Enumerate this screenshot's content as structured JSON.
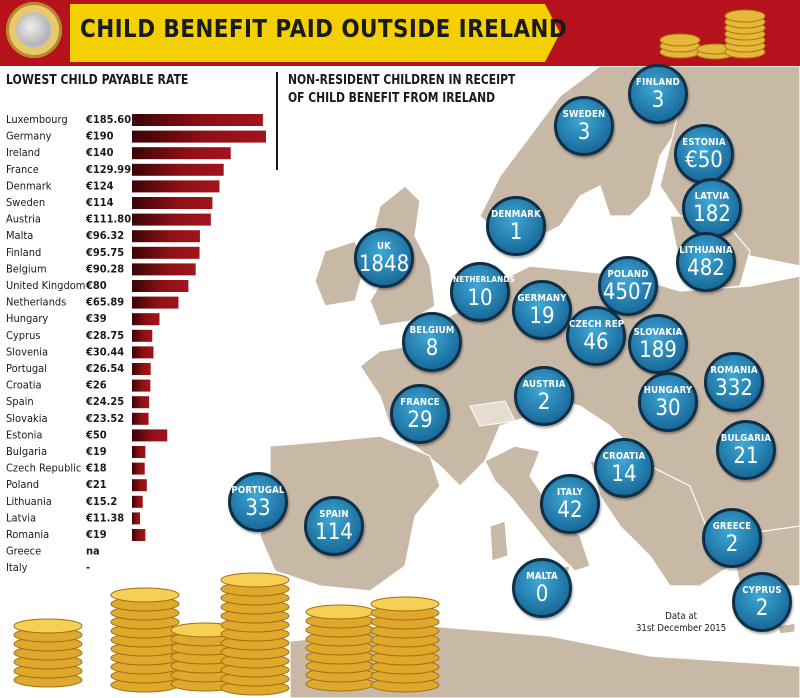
{
  "header": {
    "title": "CHILD BENEFIT PAID OUTSIDE IRELAND"
  },
  "bar_chart_heading": "LOWEST CHILD PAYABLE RATE",
  "map_heading": {
    "line1": "NON-RESIDENT CHILDREN IN RECEIPT",
    "line2": "OF CHILD BENEFIT FROM IRELAND"
  },
  "note": {
    "line1": "Data at",
    "line2": "31st December 2015"
  },
  "colors": {
    "header_red": "#b5121b",
    "bar_red": "#a3141c",
    "bubble_blue": "#1b6e9e",
    "bubble_border": "#0e2f47",
    "land": "#c8b8a6",
    "sea": "#ffffff"
  },
  "chart_data": [
    {
      "type": "bar",
      "orientation": "horizontal",
      "title": "LOWEST CHILD PAYABLE RATE",
      "categories": [
        "Luxembourg",
        "Germany",
        "Ireland",
        "France",
        "Denmark",
        "Sweden",
        "Austria",
        "Malta",
        "Finland",
        "Belgium",
        "United Kingdom",
        "Netherlands",
        "Hungary",
        "Cyprus",
        "Slovenia",
        "Portugal",
        "Croatia",
        "Spain",
        "Slovakia",
        "Estonia",
        "Bulgaria",
        "Czech Republic",
        "Poland",
        "Lithuania",
        "Latvia",
        "Romania",
        "Greece",
        "Italy"
      ],
      "labels": [
        "€185.60",
        "€190",
        "€140",
        "€129.99",
        "€124",
        "€114",
        "€111.80",
        "€96.32",
        "€95.75",
        "€90.28",
        "€80",
        "€65.89",
        "€39",
        "€28.75",
        "€30.44",
        "€26.54",
        "€26",
        "€24.25",
        "€23.52",
        "€50",
        "€19",
        "€18",
        "€21",
        "€15.2",
        "€11.38",
        "€19",
        "na",
        "-"
      ],
      "values": [
        185.6,
        190,
        140,
        129.99,
        124,
        114,
        111.8,
        96.32,
        95.75,
        90.28,
        80,
        65.89,
        39,
        28.75,
        30.44,
        26.54,
        26,
        24.25,
        23.52,
        50,
        19,
        18,
        21,
        15.2,
        11.38,
        19,
        null,
        null
      ],
      "unit": "€"
    },
    {
      "type": "map",
      "title": "NON-RESIDENT CHILDREN IN RECEIPT OF CHILD BENEFIT FROM IRELAND",
      "regions": [
        {
          "name": "FINLAND",
          "label": "3",
          "value": 3
        },
        {
          "name": "SWEDEN",
          "label": "3",
          "value": 3
        },
        {
          "name": "ESTONIA",
          "label": "€50",
          "value": 50
        },
        {
          "name": "DENMARK",
          "label": "1",
          "value": 1
        },
        {
          "name": "LATVIA",
          "label": "182",
          "value": 182
        },
        {
          "name": "UK",
          "label": "1848",
          "value": 1848
        },
        {
          "name": "LITHUANIA",
          "label": "482",
          "value": 482
        },
        {
          "name": "POLAND",
          "label": "4507",
          "value": 4507
        },
        {
          "name": "NETHERLANDS",
          "label": "10",
          "value": 10
        },
        {
          "name": "GERMANY",
          "label": "19",
          "value": 19
        },
        {
          "name": "BELGIUM",
          "label": "8",
          "value": 8
        },
        {
          "name": "CZECH REP",
          "label": "46",
          "value": 46
        },
        {
          "name": "SLOVAKIA",
          "label": "189",
          "value": 189
        },
        {
          "name": "ROMANIA",
          "label": "332",
          "value": 332
        },
        {
          "name": "FRANCE",
          "label": "29",
          "value": 29
        },
        {
          "name": "AUSTRIA",
          "label": "2",
          "value": 2
        },
        {
          "name": "HUNGARY",
          "label": "30",
          "value": 30
        },
        {
          "name": "BULGARIA",
          "label": "21",
          "value": 21
        },
        {
          "name": "CROATIA",
          "label": "14",
          "value": 14
        },
        {
          "name": "PORTUGAL",
          "label": "33",
          "value": 33
        },
        {
          "name": "ITALY",
          "label": "42",
          "value": 42
        },
        {
          "name": "SPAIN",
          "label": "114",
          "value": 114
        },
        {
          "name": "GREECE",
          "label": "2",
          "value": 2
        },
        {
          "name": "MALTA",
          "label": "0",
          "value": 0
        },
        {
          "name": "CYPRUS",
          "label": "2",
          "value": 2
        }
      ]
    }
  ]
}
